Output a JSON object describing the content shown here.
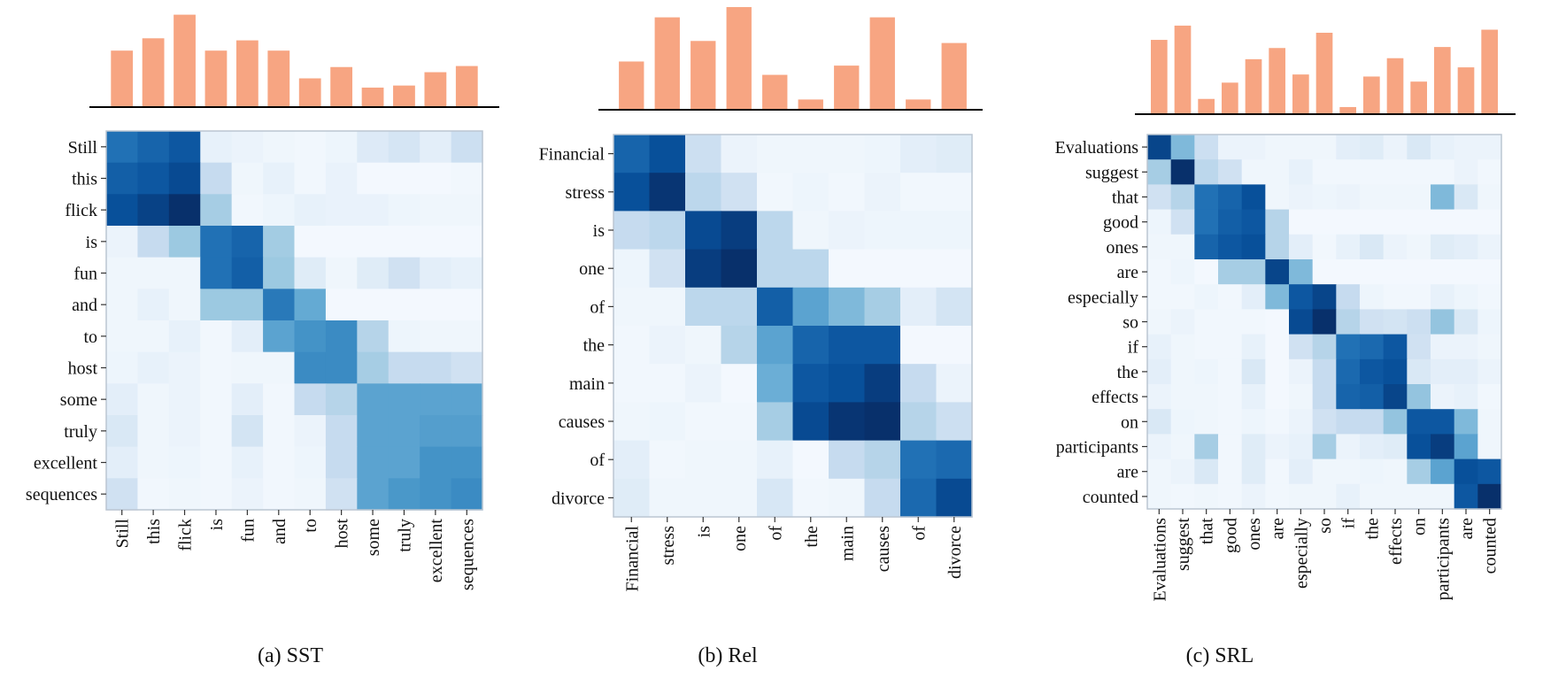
{
  "figure": {
    "captions": [
      "(a) SST",
      "(b) Rel",
      "(c) SRL"
    ]
  },
  "colors": {
    "bar": "#F7A582",
    "axis": "#000000",
    "frame": "#BBC6D2",
    "heat_low": "#F7FBFF",
    "heat_high": "#08306B"
  },
  "chart_data": [
    {
      "type": "heatmap",
      "title": "(a) SST",
      "tokens": [
        "Still",
        "this",
        "flick",
        "is",
        "fun",
        "and",
        "to",
        "host",
        "some",
        "truly",
        "excellent",
        "sequences"
      ],
      "bar_values": [
        0.55,
        0.67,
        0.9,
        0.55,
        0.65,
        0.55,
        0.28,
        0.39,
        0.19,
        0.21,
        0.34,
        0.4
      ],
      "colorbar": "Blues",
      "vlim": [
        0,
        1
      ],
      "matrix": [
        [
          0.75,
          0.8,
          0.85,
          0.08,
          0.06,
          0.04,
          0.03,
          0.05,
          0.13,
          0.17,
          0.1,
          0.22
        ],
        [
          0.82,
          0.85,
          0.9,
          0.25,
          0.04,
          0.08,
          0.03,
          0.07,
          0.02,
          0.02,
          0.02,
          0.03
        ],
        [
          0.88,
          0.93,
          1.0,
          0.35,
          0.03,
          0.05,
          0.08,
          0.07,
          0.07,
          0.05,
          0.04,
          0.04
        ],
        [
          0.06,
          0.25,
          0.38,
          0.75,
          0.8,
          0.36,
          0.02,
          0.02,
          0.02,
          0.02,
          0.02,
          0.02
        ],
        [
          0.04,
          0.04,
          0.04,
          0.75,
          0.82,
          0.38,
          0.12,
          0.04,
          0.12,
          0.2,
          0.1,
          0.08
        ],
        [
          0.04,
          0.08,
          0.04,
          0.38,
          0.38,
          0.72,
          0.52,
          0.02,
          0.02,
          0.02,
          0.02,
          0.02
        ],
        [
          0.04,
          0.04,
          0.08,
          0.03,
          0.1,
          0.55,
          0.62,
          0.65,
          0.3,
          0.05,
          0.04,
          0.04
        ],
        [
          0.05,
          0.08,
          0.06,
          0.03,
          0.04,
          0.04,
          0.65,
          0.65,
          0.35,
          0.25,
          0.25,
          0.2
        ],
        [
          0.1,
          0.04,
          0.06,
          0.03,
          0.1,
          0.03,
          0.25,
          0.3,
          0.55,
          0.55,
          0.55,
          0.55
        ],
        [
          0.15,
          0.04,
          0.06,
          0.03,
          0.18,
          0.03,
          0.06,
          0.25,
          0.55,
          0.55,
          0.57,
          0.57
        ],
        [
          0.1,
          0.04,
          0.05,
          0.03,
          0.08,
          0.03,
          0.05,
          0.25,
          0.55,
          0.55,
          0.62,
          0.62
        ],
        [
          0.2,
          0.03,
          0.04,
          0.03,
          0.06,
          0.03,
          0.04,
          0.2,
          0.55,
          0.6,
          0.62,
          0.65
        ]
      ]
    },
    {
      "type": "heatmap",
      "title": "(b) Rel",
      "tokens": [
        "Financial",
        "stress",
        "is",
        "one",
        "of",
        "the",
        "main",
        "causes",
        "of",
        "divorce"
      ],
      "bar_values": [
        0.47,
        0.9,
        0.67,
        1.0,
        0.34,
        0.1,
        0.43,
        0.9,
        0.1,
        0.65
      ],
      "colorbar": "Blues",
      "vlim": [
        0,
        1
      ],
      "matrix": [
        [
          0.8,
          0.88,
          0.22,
          0.06,
          0.04,
          0.04,
          0.04,
          0.05,
          0.1,
          0.12
        ],
        [
          0.88,
          0.98,
          0.28,
          0.2,
          0.03,
          0.05,
          0.03,
          0.06,
          0.03,
          0.03
        ],
        [
          0.25,
          0.28,
          0.9,
          0.95,
          0.28,
          0.04,
          0.06,
          0.05,
          0.05,
          0.05
        ],
        [
          0.05,
          0.2,
          0.95,
          1.0,
          0.28,
          0.28,
          0.02,
          0.02,
          0.02,
          0.02
        ],
        [
          0.04,
          0.04,
          0.28,
          0.28,
          0.82,
          0.55,
          0.45,
          0.35,
          0.1,
          0.18
        ],
        [
          0.03,
          0.06,
          0.04,
          0.3,
          0.55,
          0.8,
          0.85,
          0.85,
          0.02,
          0.02
        ],
        [
          0.03,
          0.03,
          0.06,
          0.02,
          0.5,
          0.85,
          0.88,
          0.95,
          0.25,
          0.06
        ],
        [
          0.04,
          0.05,
          0.03,
          0.03,
          0.35,
          0.9,
          0.98,
          1.0,
          0.3,
          0.22
        ],
        [
          0.1,
          0.03,
          0.04,
          0.04,
          0.08,
          0.02,
          0.25,
          0.3,
          0.75,
          0.78
        ],
        [
          0.12,
          0.04,
          0.04,
          0.04,
          0.16,
          0.03,
          0.04,
          0.25,
          0.78,
          0.9
        ]
      ]
    },
    {
      "type": "heatmap",
      "title": "(c) SRL",
      "tokens": [
        "Evaluations",
        "suggest",
        "that",
        "good",
        "ones",
        "are",
        "especially",
        "so",
        "if",
        "the",
        "effects",
        "on",
        "participants",
        "are",
        "counted"
      ],
      "bar_values": [
        0.73,
        0.87,
        0.15,
        0.31,
        0.54,
        0.65,
        0.39,
        0.8,
        0.07,
        0.37,
        0.55,
        0.32,
        0.66,
        0.46,
        0.83
      ],
      "colorbar": "Blues",
      "vlim": [
        0,
        1
      ],
      "matrix": [
        [
          0.92,
          0.45,
          0.22,
          0.06,
          0.06,
          0.04,
          0.04,
          0.04,
          0.1,
          0.12,
          0.06,
          0.15,
          0.08,
          0.06,
          0.06
        ],
        [
          0.35,
          1.0,
          0.28,
          0.2,
          0.04,
          0.04,
          0.08,
          0.03,
          0.03,
          0.03,
          0.03,
          0.03,
          0.03,
          0.06,
          0.03
        ],
        [
          0.2,
          0.3,
          0.75,
          0.8,
          0.88,
          0.04,
          0.06,
          0.05,
          0.06,
          0.04,
          0.04,
          0.04,
          0.45,
          0.15,
          0.04
        ],
        [
          0.05,
          0.2,
          0.75,
          0.82,
          0.85,
          0.3,
          0.02,
          0.02,
          0.02,
          0.02,
          0.02,
          0.02,
          0.02,
          0.02,
          0.02
        ],
        [
          0.04,
          0.04,
          0.8,
          0.85,
          0.88,
          0.3,
          0.1,
          0.03,
          0.08,
          0.15,
          0.06,
          0.04,
          0.12,
          0.1,
          0.06
        ],
        [
          0.03,
          0.05,
          0.02,
          0.35,
          0.35,
          0.92,
          0.45,
          0.02,
          0.02,
          0.02,
          0.02,
          0.02,
          0.02,
          0.02,
          0.02
        ],
        [
          0.03,
          0.03,
          0.05,
          0.03,
          0.1,
          0.45,
          0.85,
          0.92,
          0.25,
          0.05,
          0.03,
          0.03,
          0.08,
          0.05,
          0.03
        ],
        [
          0.04,
          0.06,
          0.03,
          0.03,
          0.03,
          0.02,
          0.9,
          1.0,
          0.3,
          0.2,
          0.18,
          0.22,
          0.4,
          0.15,
          0.05
        ],
        [
          0.08,
          0.04,
          0.03,
          0.03,
          0.08,
          0.02,
          0.2,
          0.3,
          0.75,
          0.78,
          0.85,
          0.2,
          0.06,
          0.06,
          0.04
        ],
        [
          0.1,
          0.04,
          0.05,
          0.03,
          0.15,
          0.02,
          0.06,
          0.25,
          0.78,
          0.85,
          0.88,
          0.15,
          0.1,
          0.1,
          0.06
        ],
        [
          0.06,
          0.04,
          0.04,
          0.03,
          0.08,
          0.02,
          0.04,
          0.25,
          0.8,
          0.82,
          0.92,
          0.4,
          0.06,
          0.08,
          0.03
        ],
        [
          0.15,
          0.05,
          0.04,
          0.03,
          0.05,
          0.03,
          0.06,
          0.2,
          0.25,
          0.25,
          0.4,
          0.85,
          0.85,
          0.45,
          0.04
        ],
        [
          0.06,
          0.04,
          0.35,
          0.03,
          0.12,
          0.06,
          0.08,
          0.35,
          0.06,
          0.1,
          0.12,
          0.88,
          0.95,
          0.55,
          0.04
        ],
        [
          0.04,
          0.06,
          0.15,
          0.03,
          0.12,
          0.03,
          0.1,
          0.04,
          0.04,
          0.05,
          0.04,
          0.35,
          0.55,
          0.88,
          0.85
        ],
        [
          0.04,
          0.03,
          0.04,
          0.03,
          0.06,
          0.03,
          0.04,
          0.04,
          0.08,
          0.04,
          0.04,
          0.04,
          0.04,
          0.85,
          1.0
        ]
      ]
    }
  ]
}
